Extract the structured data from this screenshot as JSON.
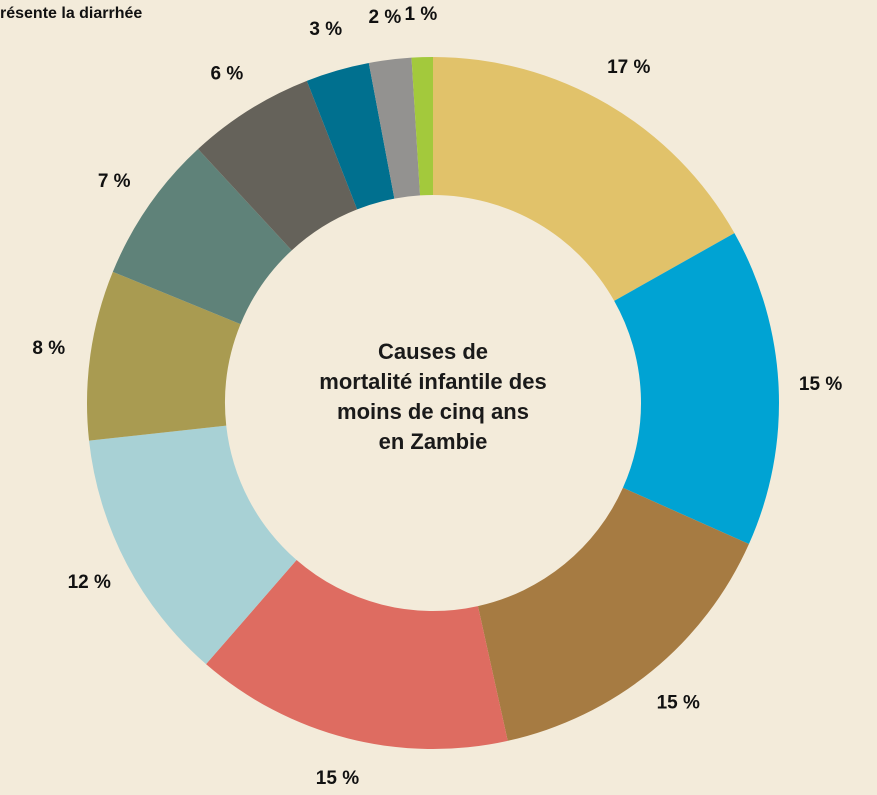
{
  "chart_data": {
    "type": "donut",
    "annotation": "résente la diarrhée",
    "title_lines": [
      "Causes de",
      "mortalité infantile des",
      "moins de cinq ans",
      "en Zambie"
    ],
    "values": [
      17,
      15,
      15,
      15,
      12,
      8,
      7,
      6,
      3,
      2,
      1
    ],
    "value_labels": [
      "17 %",
      "15 %",
      "15 %",
      "15 %",
      "12 %",
      "8 %",
      "7 %",
      "6 %",
      "3 %",
      "2 %",
      "1 %"
    ],
    "colors": [
      "#e1c26a",
      "#00a3d3",
      "#a67b42",
      "#de6c61",
      "#a8d1d5",
      "#a99b51",
      "#5f8279",
      "#65625a",
      "#00708f",
      "#939290",
      "#a3c93c"
    ]
  }
}
